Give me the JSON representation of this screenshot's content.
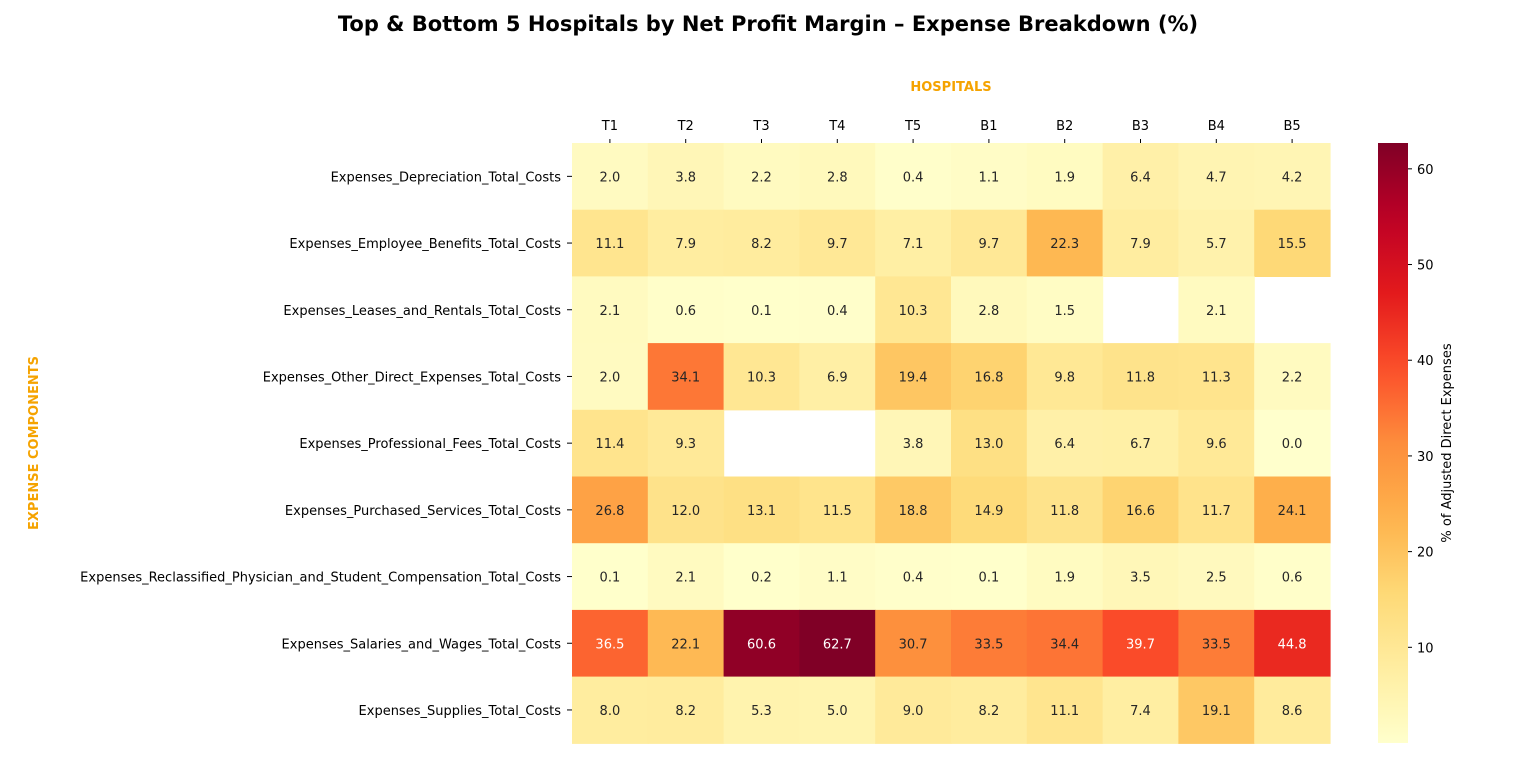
{
  "chart_data": {
    "type": "heatmap",
    "title": "Top & Bottom 5 Hospitals by Net Profit Margin – Expense Breakdown (%)",
    "xlabel": "HOSPITALS",
    "ylabel": "EXPENSE COMPONENTS",
    "x_position": "top",
    "columns": [
      "T1",
      "T2",
      "T3",
      "T4",
      "T5",
      "B1",
      "B2",
      "B3",
      "B4",
      "B5"
    ],
    "rows": [
      "Expenses_Depreciation_Total_Costs",
      "Expenses_Employee_Benefits_Total_Costs",
      "Expenses_Leases_and_Rentals_Total_Costs",
      "Expenses_Other_Direct_Expenses_Total_Costs",
      "Expenses_Professional_Fees_Total_Costs",
      "Expenses_Purchased_Services_Total_Costs",
      "Expenses_Reclassified_Physician_and_Student_Compensation_Total_Costs",
      "Expenses_Salaries_and_Wages_Total_Costs",
      "Expenses_Supplies_Total_Costs"
    ],
    "values": [
      [
        2.0,
        3.8,
        2.2,
        2.8,
        0.4,
        1.1,
        1.9,
        6.4,
        4.7,
        4.2
      ],
      [
        11.1,
        7.9,
        8.2,
        9.7,
        7.1,
        9.7,
        22.3,
        7.9,
        5.7,
        15.5
      ],
      [
        2.1,
        0.6,
        0.1,
        0.4,
        10.3,
        2.8,
        1.5,
        null,
        2.1,
        null
      ],
      [
        2.0,
        34.1,
        10.3,
        6.9,
        19.4,
        16.8,
        9.8,
        11.8,
        11.3,
        2.2
      ],
      [
        11.4,
        9.3,
        null,
        null,
        3.8,
        13.0,
        6.4,
        6.7,
        9.6,
        0.0
      ],
      [
        26.8,
        12.0,
        13.1,
        11.5,
        18.8,
        14.9,
        11.8,
        16.6,
        11.7,
        24.1
      ],
      [
        0.1,
        2.1,
        0.2,
        1.1,
        0.4,
        0.1,
        1.9,
        3.5,
        2.5,
        0.6
      ],
      [
        36.5,
        22.1,
        60.6,
        62.7,
        30.7,
        33.5,
        34.4,
        39.7,
        33.5,
        44.8
      ],
      [
        8.0,
        8.2,
        5.3,
        5.0,
        9.0,
        8.2,
        11.1,
        7.4,
        19.1,
        8.6
      ]
    ],
    "colormap": "YlOrRd",
    "vmin": 0.0,
    "vmax": 62.7,
    "colorbar": {
      "label": "% of Adjusted Direct Expenses",
      "ticks": [
        10,
        20,
        30,
        40,
        50,
        60
      ]
    },
    "axis_title_color": "#f5a300"
  }
}
